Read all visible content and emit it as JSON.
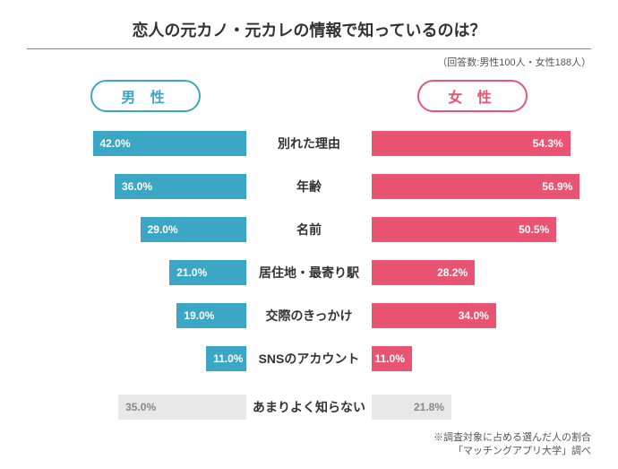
{
  "title": "恋人の元カノ・元カレの情報で知っているのは？",
  "subtitle": "（回答数:男性100人・女性188人）",
  "header_male": "男 性",
  "header_female": "女 性",
  "colors": {
    "male": "#3ba7c4",
    "female": "#e85471",
    "gray": "#e8e8e8",
    "gray_text": "#888888"
  },
  "max_pct": 60,
  "rows": [
    {
      "label": "別れた理由",
      "male": 42.0,
      "female": 54.3,
      "gray": false
    },
    {
      "label": "年齢",
      "male": 36.0,
      "female": 56.9,
      "gray": false
    },
    {
      "label": "名前",
      "male": 29.0,
      "female": 50.5,
      "gray": false
    },
    {
      "label": "居住地・最寄り駅",
      "male": 21.0,
      "female": 28.2,
      "gray": false
    },
    {
      "label": "交際のきっかけ",
      "male": 19.0,
      "female": 34.0,
      "gray": false
    },
    {
      "label": "SNSのアカウント",
      "male": 11.0,
      "female": 11.0,
      "gray": false
    },
    {
      "label": "あまりよく知らない",
      "male": 35.0,
      "female": 21.8,
      "gray": true
    }
  ],
  "footnote_line1": "※調査対象に占める選んだ人の割合",
  "footnote_line2": "「マッチングアプリ大学」調べ"
}
